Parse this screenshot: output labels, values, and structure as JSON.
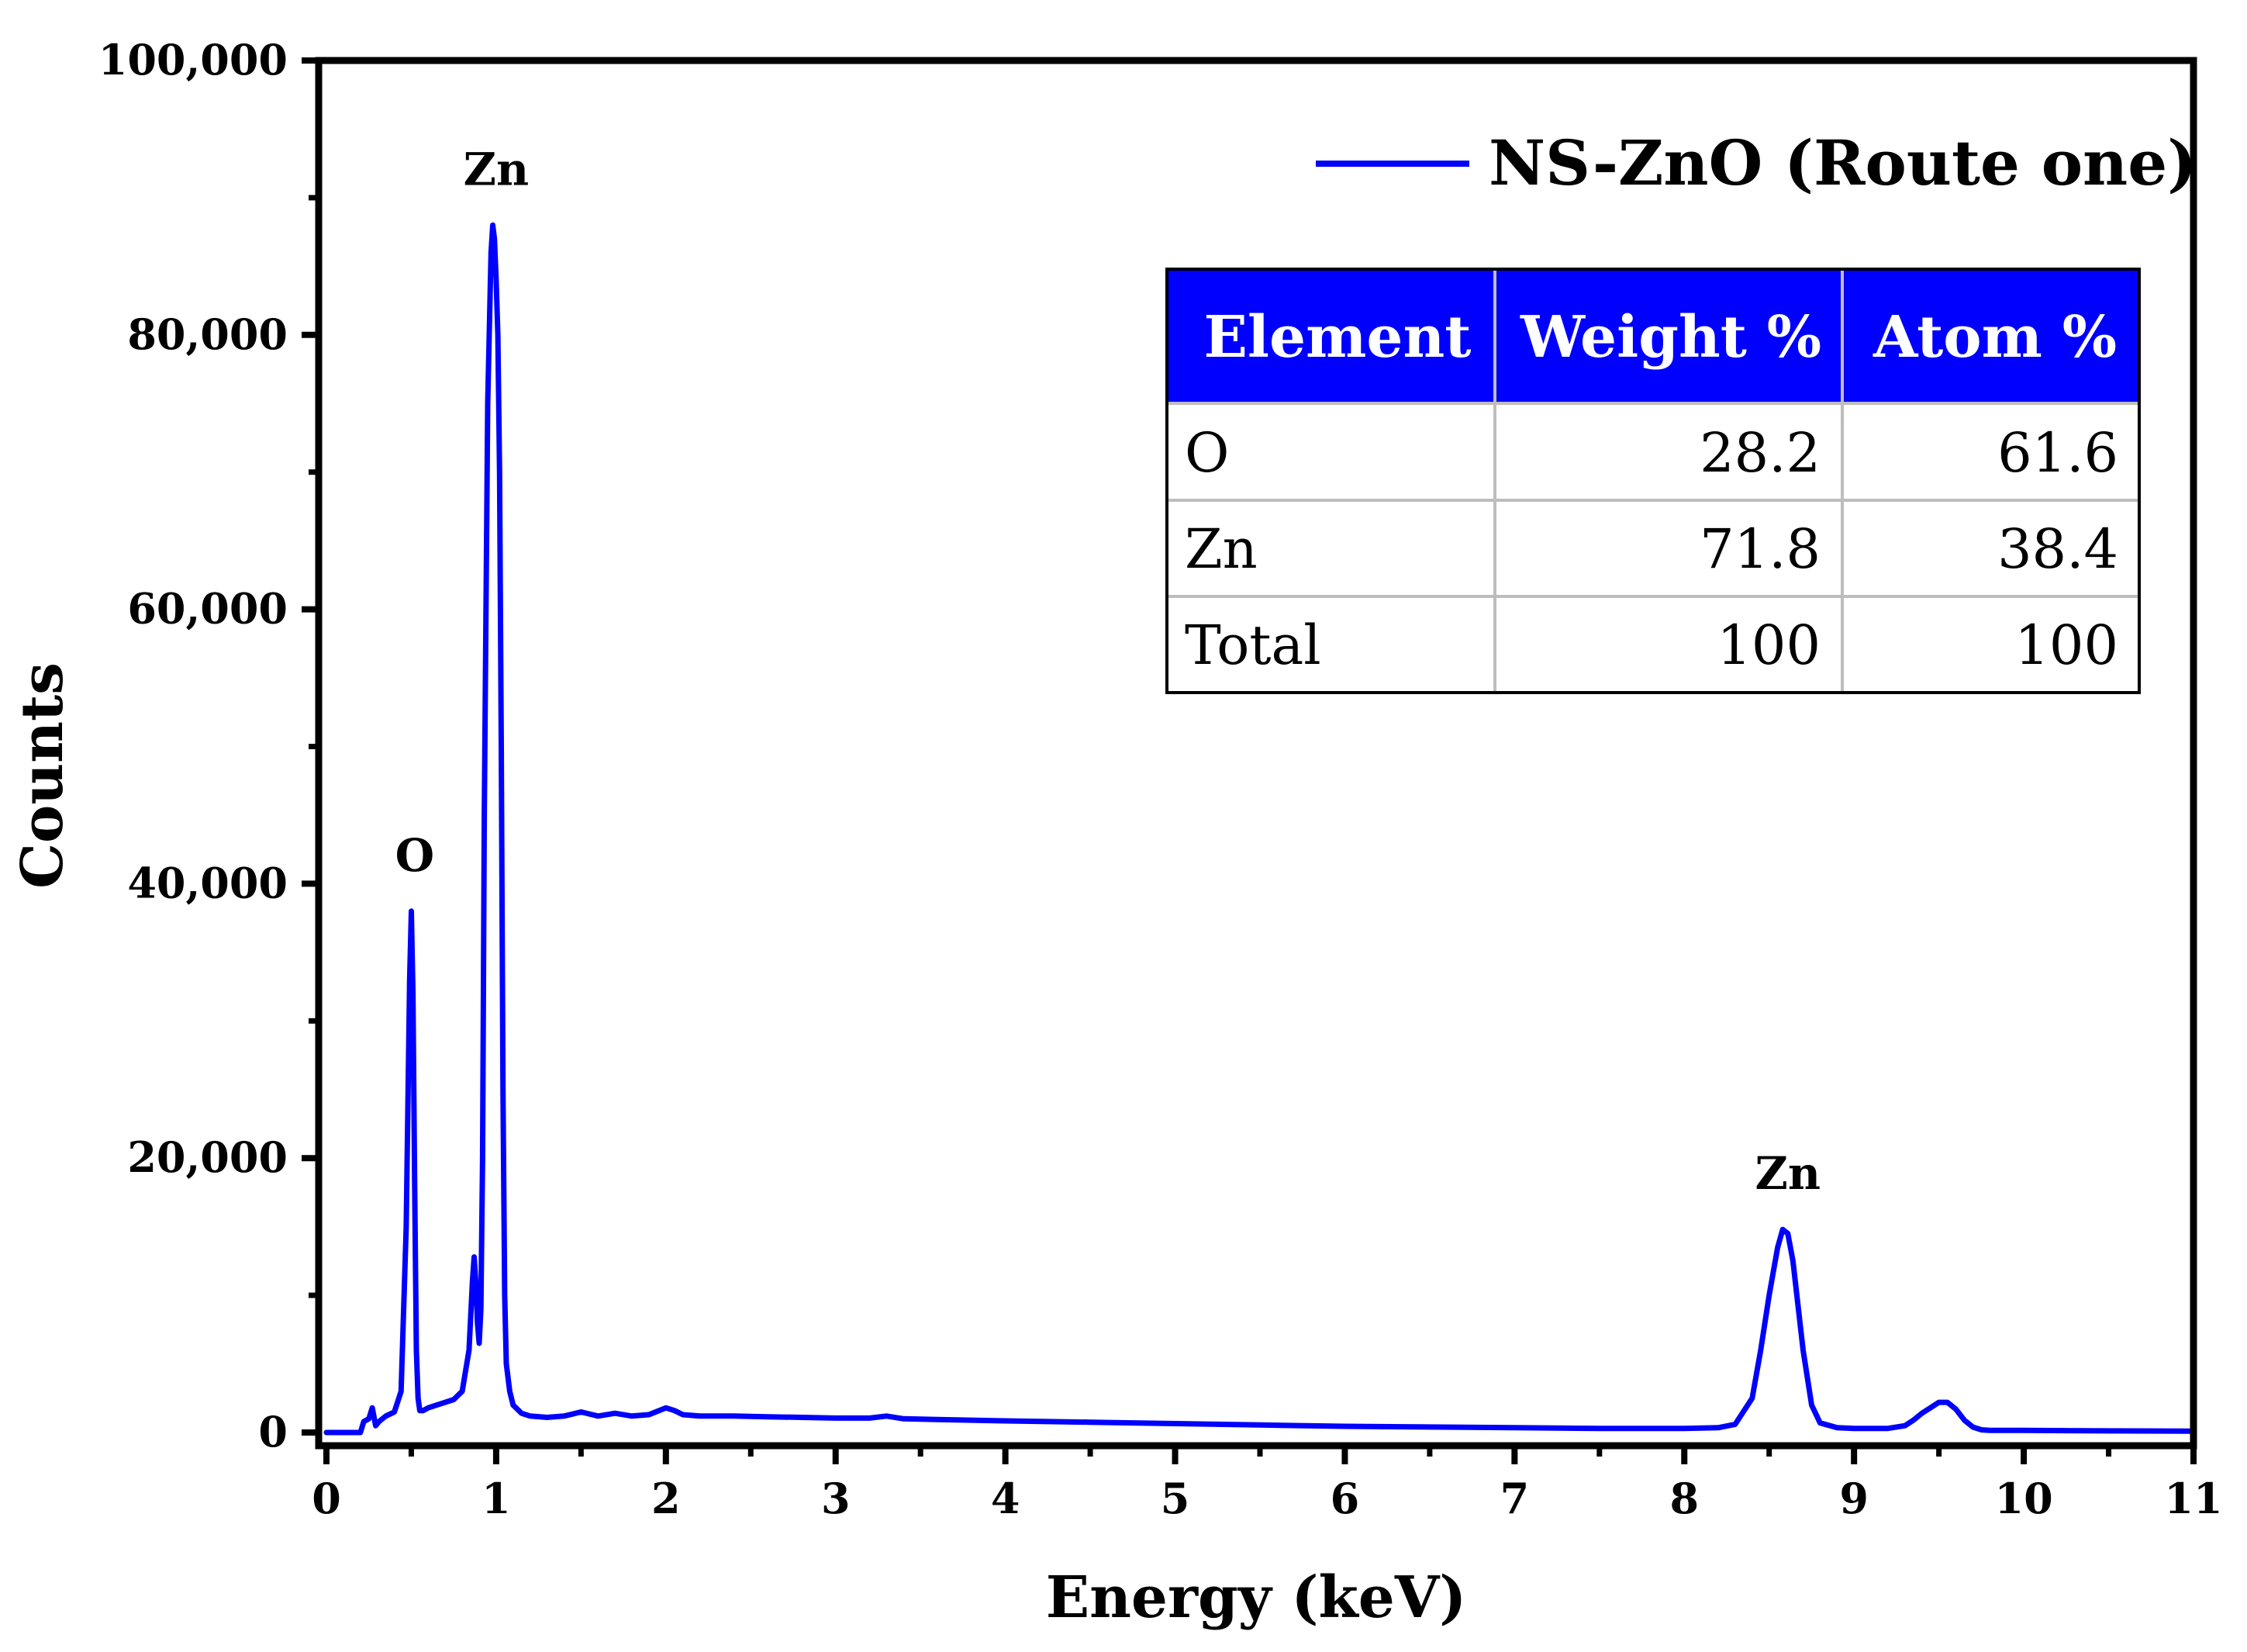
{
  "chart_data": {
    "type": "line",
    "title": "",
    "xlabel": "Energy (keV)",
    "ylabel": "Counts",
    "xlim": [
      0,
      11
    ],
    "ylim": [
      0,
      100000
    ],
    "x_ticks": [
      0,
      1,
      2,
      3,
      4,
      5,
      6,
      7,
      8,
      9,
      10,
      11
    ],
    "x_tick_labels": [
      "0",
      "1",
      "2",
      "3",
      "4",
      "5",
      "6",
      "7",
      "8",
      "9",
      "10",
      "11"
    ],
    "y_ticks": [
      0,
      20000,
      40000,
      60000,
      80000,
      100000
    ],
    "y_tick_labels": [
      "0",
      "20,000",
      "40,000",
      "60,000",
      "80,000",
      "100,000"
    ],
    "grid": false,
    "legend_position": "top-right",
    "series": [
      {
        "name": "NS-ZnO (Route one)",
        "color": "#0000ff",
        "x": [
          0.0,
          0.1,
          0.2,
          0.22,
          0.25,
          0.27,
          0.29,
          0.31,
          0.35,
          0.4,
          0.44,
          0.47,
          0.49,
          0.5,
          0.51,
          0.52,
          0.53,
          0.54,
          0.55,
          0.57,
          0.6,
          0.65,
          0.7,
          0.75,
          0.8,
          0.84,
          0.86,
          0.87,
          0.88,
          0.89,
          0.9,
          0.91,
          0.92,
          0.93,
          0.95,
          0.97,
          0.98,
          0.99,
          1.0,
          1.01,
          1.02,
          1.03,
          1.04,
          1.05,
          1.06,
          1.08,
          1.1,
          1.15,
          1.2,
          1.3,
          1.4,
          1.5,
          1.6,
          1.7,
          1.8,
          1.9,
          2.0,
          2.05,
          2.1,
          2.2,
          2.4,
          2.6,
          2.8,
          3.0,
          3.2,
          3.3,
          3.4,
          3.6,
          4.0,
          4.5,
          5.0,
          5.5,
          6.0,
          6.5,
          7.0,
          7.5,
          8.0,
          8.2,
          8.3,
          8.4,
          8.45,
          8.5,
          8.55,
          8.58,
          8.61,
          8.64,
          8.7,
          8.75,
          8.8,
          8.9,
          9.0,
          9.2,
          9.3,
          9.35,
          9.4,
          9.45,
          9.5,
          9.55,
          9.6,
          9.65,
          9.7,
          9.75,
          9.8,
          10.0,
          10.5,
          11.0
        ],
        "values": [
          0,
          0,
          0,
          800,
          1000,
          1800,
          500,
          800,
          1200,
          1500,
          3000,
          15000,
          33000,
          38000,
          32000,
          18000,
          6000,
          2500,
          1600,
          1600,
          1800,
          2000,
          2200,
          2400,
          3000,
          6000,
          11000,
          12800,
          11000,
          8000,
          6500,
          9000,
          20000,
          45000,
          75000,
          86000,
          88000,
          87000,
          84000,
          80000,
          70000,
          50000,
          25000,
          10000,
          5000,
          3000,
          2000,
          1400,
          1200,
          1100,
          1200,
          1500,
          1200,
          1400,
          1200,
          1300,
          1800,
          1600,
          1300,
          1200,
          1200,
          1150,
          1100,
          1050,
          1050,
          1200,
          1000,
          950,
          850,
          750,
          650,
          550,
          450,
          400,
          350,
          300,
          300,
          350,
          600,
          2500,
          6000,
          10000,
          13500,
          14800,
          14500,
          12500,
          6000,
          2000,
          700,
          350,
          300,
          300,
          500,
          900,
          1400,
          1800,
          2200,
          2200,
          1700,
          900,
          400,
          200,
          150,
          150,
          120,
          100
        ]
      }
    ],
    "annotations": [
      {
        "text": "O",
        "x": 0.52,
        "y": 38000
      },
      {
        "text": "Zn",
        "x": 1.0,
        "y": 88000
      },
      {
        "text": "Zn",
        "x": 8.61,
        "y": 14800
      }
    ]
  },
  "inset_table": {
    "header_color": "#0000ff",
    "columns": [
      "Element",
      "Weight %",
      "Atom %"
    ],
    "rows": [
      [
        "O",
        "28.2",
        "61.6"
      ],
      [
        "Zn",
        "71.8",
        "38.4"
      ],
      [
        "Total",
        "100",
        "100"
      ]
    ]
  }
}
